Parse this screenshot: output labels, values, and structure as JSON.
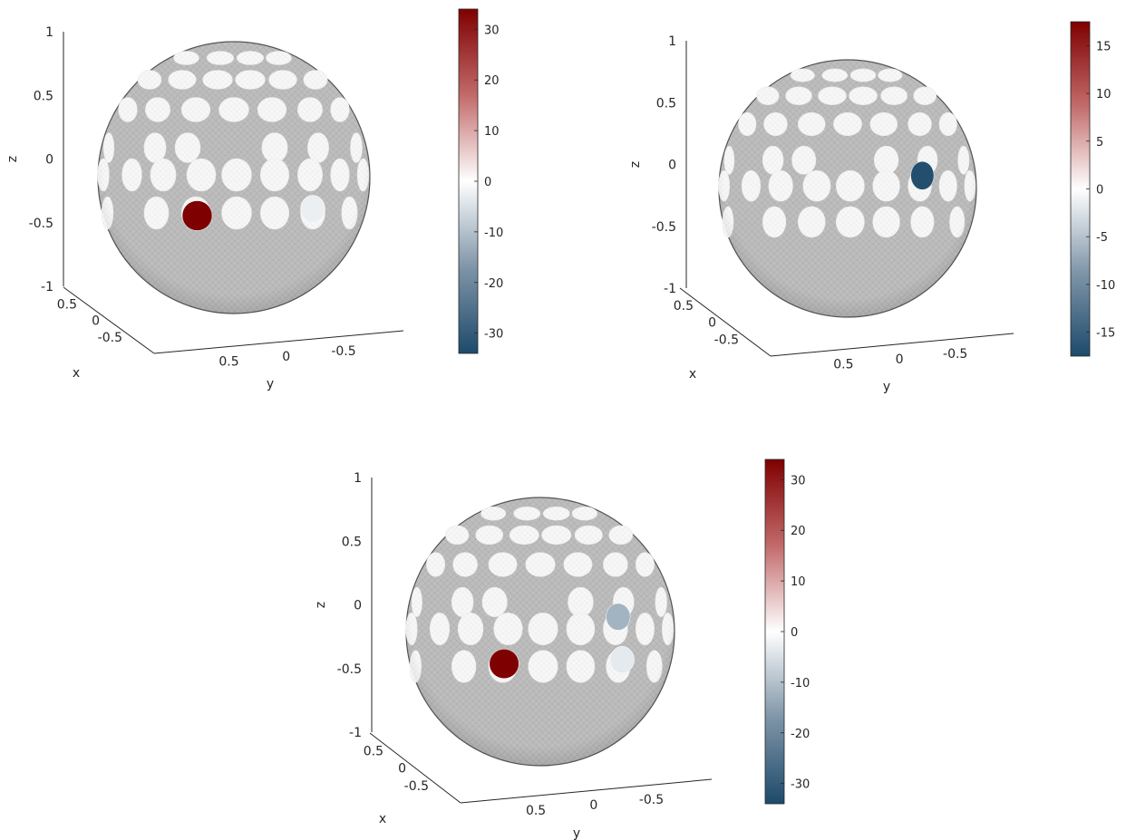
{
  "chart_data": [
    {
      "type": "3d-sphere-colormap",
      "xlabel": "x",
      "ylabel": "y",
      "zlabel": "z",
      "z_ticks": [
        "1",
        "0.5",
        "0",
        "-0.5",
        "-1"
      ],
      "x_ticks": [
        "0.5",
        "0",
        "-0.5"
      ],
      "y_ticks": [
        "0.5",
        "0",
        "-0.5"
      ],
      "colorbar": {
        "range": [
          -34,
          34
        ],
        "ticks": [
          30,
          20,
          10,
          0,
          -10,
          -20,
          -30
        ],
        "colors": {
          "high": "#7f0000",
          "mid": "#ffffff",
          "low": "#1d4a6b"
        }
      },
      "highlighted_patches": [
        {
          "region": "front-left, below equator",
          "value": 34
        },
        {
          "region": "front-right, below equator",
          "value": -3
        }
      ]
    },
    {
      "type": "3d-sphere-colormap",
      "xlabel": "x",
      "ylabel": "y",
      "zlabel": "z",
      "z_ticks": [
        "1",
        "0.5",
        "0",
        "-0.5",
        "-1"
      ],
      "x_ticks": [
        "0.5",
        "0",
        "-0.5"
      ],
      "y_ticks": [
        "0.5",
        "0",
        "-0.5"
      ],
      "colorbar": {
        "range": [
          -17.5,
          17.5
        ],
        "ticks": [
          15,
          10,
          5,
          0,
          -5,
          -10,
          -15
        ],
        "colors": {
          "high": "#7f0000",
          "mid": "#ffffff",
          "low": "#1d4a6b"
        }
      },
      "highlighted_patches": [
        {
          "region": "right, at equator",
          "value": -17
        }
      ]
    },
    {
      "type": "3d-sphere-colormap",
      "xlabel": "x",
      "ylabel": "y",
      "zlabel": "z",
      "z_ticks": [
        "1",
        "0.5",
        "0",
        "-0.5",
        "-1"
      ],
      "x_ticks": [
        "0.5",
        "0",
        "-0.5"
      ],
      "y_ticks": [
        "0.5",
        "0",
        "-0.5"
      ],
      "colorbar": {
        "range": [
          -34,
          34
        ],
        "ticks": [
          30,
          20,
          10,
          0,
          -10,
          -20,
          -30
        ],
        "colors": {
          "high": "#7f0000",
          "mid": "#ffffff",
          "low": "#1d4a6b"
        }
      },
      "highlighted_patches": [
        {
          "region": "front-left, below equator",
          "value": 34
        },
        {
          "region": "right, at equator",
          "value": -14
        },
        {
          "region": "right, below equator",
          "value": -4
        }
      ]
    }
  ]
}
